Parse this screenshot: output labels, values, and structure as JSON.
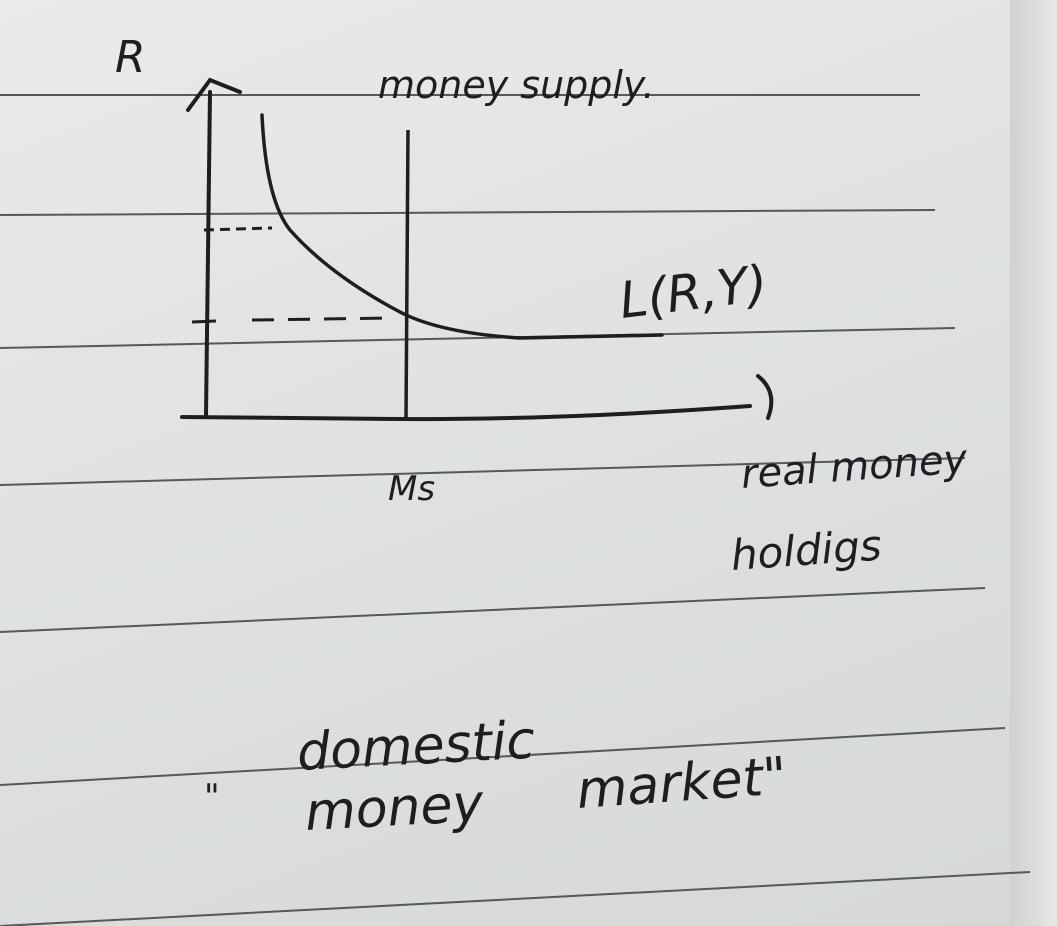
{
  "diagram": {
    "y_axis_label": "R",
    "money_supply_label": "money supply.",
    "demand_curve_label": "L(R,Y)",
    "ms_tick_label": "Ms",
    "x_axis_label_line1": "real money",
    "x_axis_label_line2": "holdigs"
  },
  "caption": {
    "open_quote": "\"",
    "line1": "domestic",
    "line2_word1": "money",
    "line2_word2": "market\""
  },
  "colors": {
    "ink": "#1e1e22",
    "rule_line": "#55585c",
    "paper": "#e4e6e3"
  }
}
